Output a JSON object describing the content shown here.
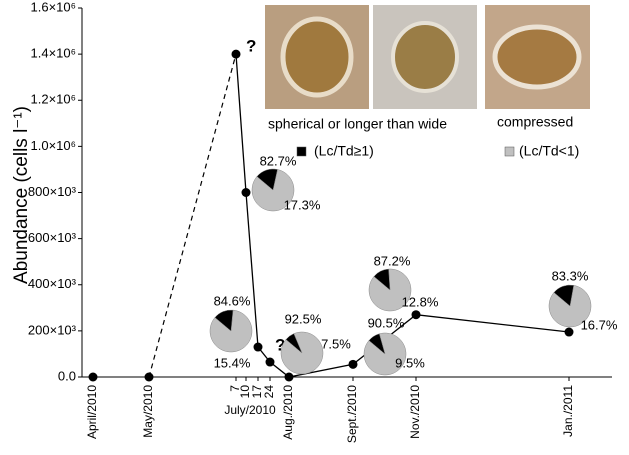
{
  "chart_data": {
    "type": "line",
    "y_label": "Abundance (cells l⁻¹)",
    "categories": [
      "April/2010",
      "May/2010",
      "7",
      "10",
      "17",
      "24",
      "Aug./2010",
      "Sept./2010",
      "Nov./2010",
      "Jan./2011"
    ],
    "x_group_label": "July/2010",
    "values": [
      0,
      0,
      1400000,
      800000,
      130000,
      65000,
      0,
      55000,
      270000,
      195000
    ],
    "color": "#000000",
    "ylim": [
      0,
      1600000
    ],
    "yticks": [
      {
        "value": 0,
        "label": "0.0"
      },
      {
        "value": 200000,
        "label": "200×10³"
      },
      {
        "value": 400000,
        "label": "400×10³"
      },
      {
        "value": 600000,
        "label": "600×10³"
      },
      {
        "value": 800000,
        "label": "800×10³"
      },
      {
        "value": 1000000,
        "label": "1.0×10⁶"
      },
      {
        "value": 1200000,
        "label": "1.2×10⁶"
      },
      {
        "value": 1400000,
        "label": "1.4×10⁶"
      },
      {
        "value": 1600000,
        "label": "1.6×10⁶"
      }
    ],
    "annotations": [
      "?",
      "?"
    ],
    "legend": [
      {
        "label": "compressed",
        "sublabel": "(Lc/Td<1)",
        "color": "#c0c0c0"
      },
      {
        "label": "spherical or longer than wide",
        "sublabel": "(Lc/Td≥1)",
        "color": "#000000"
      }
    ],
    "pies": [
      {
        "values": [
          82.7,
          17.3
        ],
        "value_labels": [
          "82.7%",
          "17.3%"
        ]
      },
      {
        "values": [
          84.6,
          15.4
        ],
        "value_labels": [
          "84.6%",
          "15.4%"
        ]
      },
      {
        "values": [
          92.5,
          7.5
        ],
        "value_labels": [
          "92.5%",
          "7.5%"
        ]
      },
      {
        "values": [
          90.5,
          9.5
        ],
        "value_labels": [
          "90.5%",
          "9.5%"
        ]
      },
      {
        "values": [
          87.2,
          12.8
        ],
        "value_labels": [
          "87.2%",
          "12.8%"
        ]
      },
      {
        "values": [
          83.3,
          16.7
        ],
        "value_labels": [
          "83.3%",
          "16.7%"
        ]
      }
    ]
  }
}
